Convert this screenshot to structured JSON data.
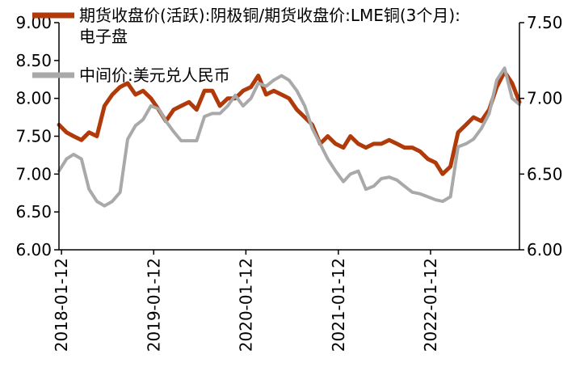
{
  "chart_data": {
    "type": "line",
    "title": "",
    "xlabel": "",
    "ylabel_left": "",
    "ylabel_right": "",
    "x_range": [
      "2018-01-02",
      "2022-12-30"
    ],
    "x_ticks": [
      "2018-01-12",
      "2019-01-12",
      "2020-01-12",
      "2021-01-12",
      "2022-01-12"
    ],
    "ylim_left": [
      6.0,
      9.0
    ],
    "ylim_right": [
      6.0,
      7.5
    ],
    "y_ticks_left": [
      "6.00",
      "6.50",
      "7.00",
      "7.50",
      "8.00",
      "8.50",
      "9.00"
    ],
    "y_ticks_right": [
      "6.00",
      "6.50",
      "7.00",
      "7.50"
    ],
    "grid": false,
    "legend_position": "top-left",
    "series": [
      {
        "name": "期货收盘价(活跃):阴极铜/期货收盘价:LME铜(3个月):电子盘",
        "axis": "left",
        "color": "#B03A0A",
        "points": [
          [
            "2018-01-02",
            7.65
          ],
          [
            "2018-02-01",
            7.55
          ],
          [
            "2018-03-01",
            7.5
          ],
          [
            "2018-04-01",
            7.45
          ],
          [
            "2018-05-01",
            7.55
          ],
          [
            "2018-06-01",
            7.5
          ],
          [
            "2018-07-01",
            7.9
          ],
          [
            "2018-08-01",
            8.05
          ],
          [
            "2018-09-01",
            8.15
          ],
          [
            "2018-10-01",
            8.2
          ],
          [
            "2018-11-01",
            8.05
          ],
          [
            "2018-12-01",
            8.1
          ],
          [
            "2019-01-01",
            8.0
          ],
          [
            "2019-02-01",
            7.85
          ],
          [
            "2019-03-01",
            7.7
          ],
          [
            "2019-04-01",
            7.85
          ],
          [
            "2019-05-01",
            7.9
          ],
          [
            "2019-06-01",
            7.95
          ],
          [
            "2019-07-01",
            7.85
          ],
          [
            "2019-08-01",
            8.1
          ],
          [
            "2019-09-01",
            8.1
          ],
          [
            "2019-10-01",
            7.9
          ],
          [
            "2019-11-01",
            8.0
          ],
          [
            "2019-12-01",
            8.0
          ],
          [
            "2020-01-01",
            8.1
          ],
          [
            "2020-02-01",
            8.15
          ],
          [
            "2020-03-01",
            8.3
          ],
          [
            "2020-04-01",
            8.05
          ],
          [
            "2020-05-01",
            8.1
          ],
          [
            "2020-06-01",
            8.05
          ],
          [
            "2020-07-01",
            8.0
          ],
          [
            "2020-08-01",
            7.85
          ],
          [
            "2020-09-01",
            7.75
          ],
          [
            "2020-10-01",
            7.65
          ],
          [
            "2020-11-01",
            7.4
          ],
          [
            "2020-12-01",
            7.5
          ],
          [
            "2021-01-01",
            7.4
          ],
          [
            "2021-02-01",
            7.35
          ],
          [
            "2021-03-01",
            7.5
          ],
          [
            "2021-04-01",
            7.4
          ],
          [
            "2021-05-01",
            7.35
          ],
          [
            "2021-06-01",
            7.4
          ],
          [
            "2021-07-01",
            7.4
          ],
          [
            "2021-08-01",
            7.45
          ],
          [
            "2021-09-01",
            7.4
          ],
          [
            "2021-10-01",
            7.35
          ],
          [
            "2021-11-01",
            7.35
          ],
          [
            "2021-12-01",
            7.3
          ],
          [
            "2022-01-01",
            7.2
          ],
          [
            "2022-02-01",
            7.15
          ],
          [
            "2022-03-01",
            7.0
          ],
          [
            "2022-04-01",
            7.1
          ],
          [
            "2022-05-01",
            7.55
          ],
          [
            "2022-06-01",
            7.65
          ],
          [
            "2022-07-01",
            7.75
          ],
          [
            "2022-08-01",
            7.7
          ],
          [
            "2022-09-01",
            7.85
          ],
          [
            "2022-10-01",
            8.15
          ],
          [
            "2022-11-01",
            8.35
          ],
          [
            "2022-12-01",
            8.2
          ],
          [
            "2022-12-30",
            7.95
          ]
        ]
      },
      {
        "name": "中间价:美元兑人民币",
        "axis": "right",
        "color": "#A9A9A9",
        "points": [
          [
            "2018-01-02",
            6.52
          ],
          [
            "2018-02-01",
            6.6
          ],
          [
            "2018-03-01",
            6.63
          ],
          [
            "2018-04-01",
            6.6
          ],
          [
            "2018-05-01",
            6.4
          ],
          [
            "2018-06-01",
            6.32
          ],
          [
            "2018-07-01",
            6.29
          ],
          [
            "2018-08-01",
            6.32
          ],
          [
            "2018-09-01",
            6.38
          ],
          [
            "2018-10-01",
            6.73
          ],
          [
            "2018-11-01",
            6.82
          ],
          [
            "2018-12-01",
            6.86
          ],
          [
            "2019-01-01",
            6.95
          ],
          [
            "2019-02-01",
            6.93
          ],
          [
            "2019-03-01",
            6.85
          ],
          [
            "2019-04-01",
            6.78
          ],
          [
            "2019-05-01",
            6.72
          ],
          [
            "2019-06-01",
            6.72
          ],
          [
            "2019-07-01",
            6.72
          ],
          [
            "2019-08-01",
            6.88
          ],
          [
            "2019-09-01",
            6.9
          ],
          [
            "2019-10-01",
            6.9
          ],
          [
            "2019-11-01",
            6.95
          ],
          [
            "2019-12-01",
            7.02
          ],
          [
            "2020-01-01",
            6.95
          ],
          [
            "2020-02-01",
            7.0
          ],
          [
            "2020-03-01",
            7.1
          ],
          [
            "2020-04-01",
            7.08
          ],
          [
            "2020-05-01",
            7.12
          ],
          [
            "2020-06-01",
            7.15
          ],
          [
            "2020-07-01",
            7.12
          ],
          [
            "2020-08-01",
            7.05
          ],
          [
            "2020-09-01",
            6.95
          ],
          [
            "2020-10-01",
            6.8
          ],
          [
            "2020-11-01",
            6.7
          ],
          [
            "2020-12-01",
            6.6
          ],
          [
            "2021-01-01",
            6.52
          ],
          [
            "2021-02-01",
            6.45
          ],
          [
            "2021-03-01",
            6.5
          ],
          [
            "2021-04-01",
            6.52
          ],
          [
            "2021-05-01",
            6.4
          ],
          [
            "2021-06-01",
            6.42
          ],
          [
            "2021-07-01",
            6.47
          ],
          [
            "2021-08-01",
            6.48
          ],
          [
            "2021-09-01",
            6.46
          ],
          [
            "2021-10-01",
            6.42
          ],
          [
            "2021-11-01",
            6.38
          ],
          [
            "2021-12-01",
            6.37
          ],
          [
            "2022-01-01",
            6.35
          ],
          [
            "2022-02-01",
            6.33
          ],
          [
            "2022-03-01",
            6.32
          ],
          [
            "2022-04-01",
            6.35
          ],
          [
            "2022-05-01",
            6.68
          ],
          [
            "2022-06-01",
            6.7
          ],
          [
            "2022-07-01",
            6.73
          ],
          [
            "2022-08-01",
            6.8
          ],
          [
            "2022-09-01",
            6.9
          ],
          [
            "2022-10-01",
            7.12
          ],
          [
            "2022-11-01",
            7.2
          ],
          [
            "2022-12-01",
            7.0
          ],
          [
            "2022-12-30",
            6.96
          ]
        ]
      }
    ]
  }
}
